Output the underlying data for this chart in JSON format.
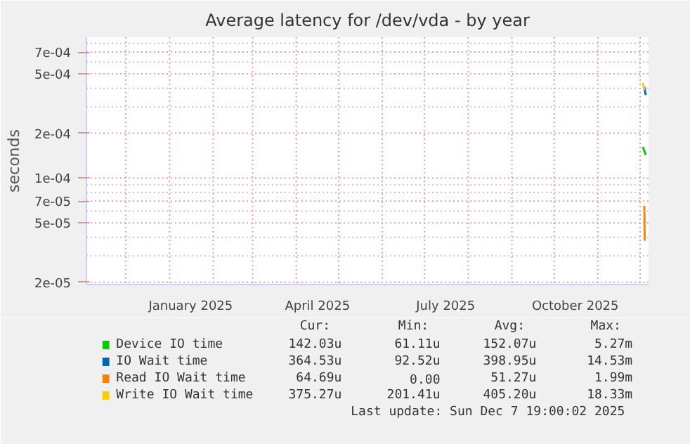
{
  "chart_data": {
    "type": "line",
    "title": "Average latency for /dev/vda - by year",
    "ylabel": "seconds",
    "log": true,
    "grid": true,
    "legend": "bottom",
    "xlim": [
      "2024-11-03",
      "2025-12-07"
    ],
    "ylim": [
      1.93e-05,
      0.00088
    ],
    "xticks": [
      {
        "value": "2024-12-01",
        "label": null
      },
      {
        "value": "2025-01-01",
        "label": null
      },
      {
        "value": "2025-01-16",
        "label": "January 2025"
      },
      {
        "value": "2025-02-01",
        "label": null
      },
      {
        "value": "2025-03-01",
        "label": null
      },
      {
        "value": "2025-04-01",
        "label": null
      },
      {
        "value": "2025-04-16",
        "label": "April 2025"
      },
      {
        "value": "2025-05-01",
        "label": null
      },
      {
        "value": "2025-06-01",
        "label": null
      },
      {
        "value": "2025-07-01",
        "label": null
      },
      {
        "value": "2025-07-16",
        "label": "July 2025"
      },
      {
        "value": "2025-08-01",
        "label": null
      },
      {
        "value": "2025-09-01",
        "label": null
      },
      {
        "value": "2025-10-01",
        "label": null
      },
      {
        "value": "2025-10-16",
        "label": "October 2025"
      },
      {
        "value": "2025-11-01",
        "label": null
      },
      {
        "value": "2025-12-01",
        "label": null
      }
    ],
    "yticks": [
      {
        "value": 2e-05,
        "label": "2e-05"
      },
      {
        "value": 3e-05,
        "label": null
      },
      {
        "value": 4e-05,
        "label": null
      },
      {
        "value": 5e-05,
        "label": "5e-05"
      },
      {
        "value": 6e-05,
        "label": null
      },
      {
        "value": 7e-05,
        "label": "7e-05"
      },
      {
        "value": 8e-05,
        "label": null
      },
      {
        "value": 9e-05,
        "label": null
      },
      {
        "value": 0.0001,
        "label": "1e-04"
      },
      {
        "value": 0.0002,
        "label": "2e-04"
      },
      {
        "value": 0.0003,
        "label": null
      },
      {
        "value": 0.0004,
        "label": null
      },
      {
        "value": 0.0005,
        "label": "5e-04"
      },
      {
        "value": 0.0006,
        "label": null
      },
      {
        "value": 0.0007,
        "label": "7e-04"
      },
      {
        "value": 0.0008,
        "label": null
      }
    ],
    "series": [
      {
        "name": "Device IO time",
        "color": "#00cc00",
        "x": [
          "2025-12-03",
          "2025-12-05"
        ],
        "values": [
          0.000162,
          0.000143
        ]
      },
      {
        "name": "IO Wait time",
        "color": "#0066b3",
        "x": [
          "2025-12-04",
          "2025-12-05"
        ],
        "values": [
          0.00041,
          0.00036
        ]
      },
      {
        "name": "Read IO Wait time",
        "color": "#ff8000",
        "x": [
          "2025-12-04",
          "2025-12-04T06:00"
        ],
        "values": [
          6.5e-05,
          3.8e-05
        ]
      },
      {
        "name": "Write IO Wait time",
        "color": "#ffcc00",
        "x": [
          "2025-12-03",
          "2025-12-04"
        ],
        "values": [
          0.000435,
          0.00039
        ]
      }
    ],
    "annotations": [
      "Cur:",
      "Min:",
      "Avg:",
      "Max:",
      "142.03u",
      "61.11u",
      "152.07u",
      "5.27m",
      "364.53u",
      "92.52u",
      "398.95u",
      "14.53m",
      "64.69u",
      "0.00",
      "51.27u",
      "1.99m",
      "375.27u",
      "201.41u",
      "405.20u",
      "18.33m",
      "Last update: Sun Dec  7 19:00:02 2025"
    ]
  }
}
